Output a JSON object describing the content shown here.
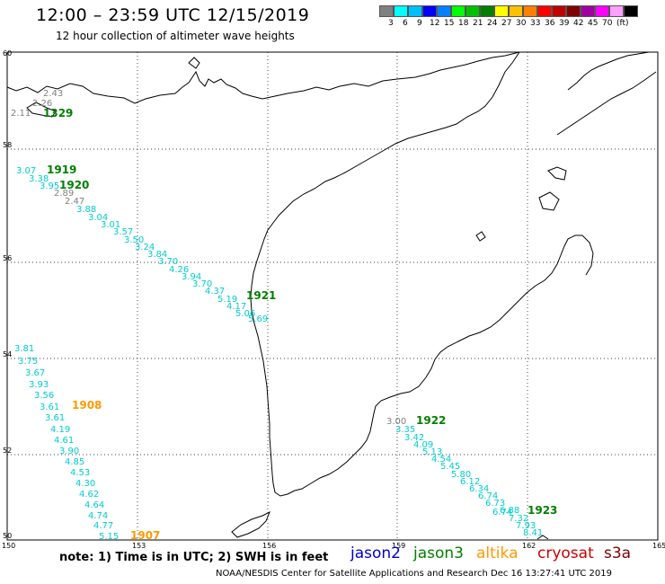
{
  "title": "12:00 – 23:59 UTC 12/15/2019",
  "subtitle": "12 hour collection of altimeter wave heights",
  "legend": {
    "colors": [
      "#808080",
      "#00ffff",
      "#00bfff",
      "#0000ff",
      "#0080ff",
      "#00ff00",
      "#00c000",
      "#008000",
      "#ffff00",
      "#ffc000",
      "#ff8000",
      "#ff0000",
      "#c00000",
      "#800000",
      "#a000a0",
      "#ff00ff",
      "#ffa0ff",
      "#000000"
    ],
    "labels": [
      "3",
      "6",
      "9",
      "12",
      "15",
      "18",
      "21",
      "24",
      "27",
      "30",
      "33",
      "36",
      "39",
      "42",
      "45",
      "70",
      "(ft)"
    ]
  },
  "axes": {
    "lon_ticks": [
      "150",
      "153",
      "156",
      "159",
      "162",
      "165"
    ],
    "lat_ticks": [
      "60",
      "58",
      "56",
      "54",
      "52",
      "50"
    ]
  },
  "tracks": [
    {
      "time": "1329",
      "time_color": "#008000",
      "points": [
        {
          "v": "2.43",
          "c": "#808080"
        },
        {
          "v": "2.26",
          "c": "#808080"
        },
        {
          "v": "2.11",
          "c": "#808080"
        }
      ]
    },
    {
      "time": "1919",
      "time_color": "#008000",
      "points": [
        {
          "v": "3.07",
          "c": "#00cccc"
        },
        {
          "v": "3.38",
          "c": "#00cccc"
        },
        {
          "v": "3.95",
          "c": "#00cccc"
        }
      ]
    },
    {
      "time": "1920",
      "time_color": "#008000",
      "points": [
        {
          "v": "2.89",
          "c": "#808080"
        },
        {
          "v": "2.47",
          "c": "#808080"
        },
        {
          "v": "3.88",
          "c": "#00cccc"
        },
        {
          "v": "3.04",
          "c": "#00cccc"
        },
        {
          "v": "3.01",
          "c": "#00cccc"
        },
        {
          "v": "3.57",
          "c": "#00cccc"
        },
        {
          "v": "3.50",
          "c": "#00cccc"
        },
        {
          "v": "3.24",
          "c": "#00cccc"
        },
        {
          "v": "3.84",
          "c": "#00cccc"
        },
        {
          "v": "3.70",
          "c": "#00cccc"
        },
        {
          "v": "4.26",
          "c": "#00cccc"
        },
        {
          "v": "3.94",
          "c": "#00cccc"
        },
        {
          "v": "3.70",
          "c": "#00cccc"
        }
      ]
    },
    {
      "time": "1921",
      "time_color": "#008000",
      "points": [
        {
          "v": "4.37",
          "c": "#00cccc"
        },
        {
          "v": "5.19",
          "c": "#00cccc"
        },
        {
          "v": "4.17",
          "c": "#00cccc"
        },
        {
          "v": "5.06",
          "c": "#00cccc"
        },
        {
          "v": "5.69",
          "c": "#00cccc"
        }
      ]
    },
    {
      "time": "1908",
      "time_color": "#ff9900",
      "points": [
        {
          "v": "3.81",
          "c": "#00cccc"
        },
        {
          "v": "3.75",
          "c": "#00cccc"
        },
        {
          "v": "3.67",
          "c": "#00cccc"
        },
        {
          "v": "3.93",
          "c": "#00cccc"
        },
        {
          "v": "3.56",
          "c": "#00cccc"
        },
        {
          "v": "3.61",
          "c": "#00cccc"
        },
        {
          "v": "3.61",
          "c": "#00cccc"
        },
        {
          "v": "4.19",
          "c": "#00cccc"
        },
        {
          "v": "4.61",
          "c": "#00cccc"
        },
        {
          "v": "3.90",
          "c": "#00cccc"
        },
        {
          "v": "4.85",
          "c": "#00cccc"
        },
        {
          "v": "4.53",
          "c": "#00cccc"
        },
        {
          "v": "4.30",
          "c": "#00cccc"
        },
        {
          "v": "4.62",
          "c": "#00cccc"
        },
        {
          "v": "4.64",
          "c": "#00cccc"
        },
        {
          "v": "4.74",
          "c": "#00cccc"
        },
        {
          "v": "4.77",
          "c": "#00cccc"
        },
        {
          "v": "5.15",
          "c": "#00cccc"
        }
      ]
    },
    {
      "time": "1907",
      "time_color": "#ff9900",
      "points": []
    },
    {
      "time": "1922",
      "time_color": "#008000",
      "points": [
        {
          "v": "3.00",
          "c": "#808080"
        },
        {
          "v": "3.35",
          "c": "#00cccc"
        },
        {
          "v": "3.42",
          "c": "#00cccc"
        },
        {
          "v": "4.09",
          "c": "#00cccc"
        },
        {
          "v": "5.13",
          "c": "#00cccc"
        },
        {
          "v": "4.54",
          "c": "#00cccc"
        },
        {
          "v": "5.45",
          "c": "#00cccc"
        },
        {
          "v": "5.80",
          "c": "#00cccc"
        },
        {
          "v": "6.12",
          "c": "#00cccc"
        },
        {
          "v": "6.34",
          "c": "#00cccc"
        },
        {
          "v": "6.74",
          "c": "#00cccc"
        },
        {
          "v": "6.73",
          "c": "#00cccc"
        },
        {
          "v": "6.74",
          "c": "#00cccc"
        }
      ]
    },
    {
      "time": "1923",
      "time_color": "#008000",
      "points": [
        {
          "v": "6.88",
          "c": "#00cccc"
        },
        {
          "v": "7.32",
          "c": "#00cccc"
        },
        {
          "v": "7.93",
          "c": "#00cccc"
        },
        {
          "v": "8.41",
          "c": "#00cccc"
        }
      ]
    }
  ],
  "footer": {
    "note": "note:  1) Time is in UTC;  2) SWH is in feet",
    "satellites": [
      {
        "name": "jason2",
        "color": "#0000cc"
      },
      {
        "name": "jason3",
        "color": "#008000"
      },
      {
        "name": "altika",
        "color": "#ff9900"
      },
      {
        "name": "cryosat",
        "color": "#cc0000"
      },
      {
        "name": "s3a",
        "color": "#800000"
      }
    ],
    "credit": "NOAA/NESDIS Center for Satellite Applications and Research    Dec 16 13:27:41 UTC 2019"
  }
}
